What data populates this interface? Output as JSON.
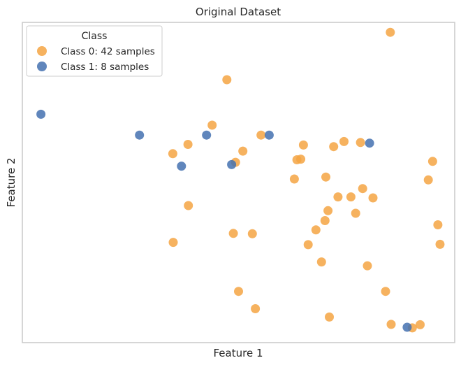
{
  "chart_data": {
    "type": "scatter",
    "title": "Original Dataset",
    "xlabel": "Feature 1",
    "ylabel": "Feature 2",
    "xlim": [
      0,
      100
    ],
    "ylim": [
      0,
      100
    ],
    "grid": false,
    "legend": {
      "title": "Class",
      "placement": "top-left"
    },
    "series": [
      {
        "name": "Class 0: 42 samples",
        "color": "#F5A443",
        "points": [
          [
            85.1,
            96.9
          ],
          [
            47.3,
            82.1
          ],
          [
            43.9,
            67.9
          ],
          [
            55.2,
            64.8
          ],
          [
            38.3,
            61.9
          ],
          [
            74.4,
            62.8
          ],
          [
            78.2,
            62.5
          ],
          [
            51.0,
            59.8
          ],
          [
            65.0,
            61.7
          ],
          [
            72.0,
            61.2
          ],
          [
            34.8,
            59.0
          ],
          [
            49.3,
            56.3
          ],
          [
            63.5,
            57.1
          ],
          [
            64.4,
            57.3
          ],
          [
            94.9,
            56.6
          ],
          [
            62.9,
            51.1
          ],
          [
            70.2,
            51.7
          ],
          [
            93.9,
            50.8
          ],
          [
            78.7,
            48.1
          ],
          [
            73.0,
            45.5
          ],
          [
            76.0,
            45.5
          ],
          [
            81.1,
            45.2
          ],
          [
            38.4,
            42.8
          ],
          [
            70.7,
            41.2
          ],
          [
            77.1,
            40.4
          ],
          [
            70.0,
            38.1
          ],
          [
            96.1,
            36.8
          ],
          [
            67.9,
            35.2
          ],
          [
            48.8,
            34.1
          ],
          [
            53.2,
            34.0
          ],
          [
            34.9,
            31.3
          ],
          [
            66.1,
            30.6
          ],
          [
            96.6,
            30.7
          ],
          [
            69.2,
            25.2
          ],
          [
            79.8,
            24.0
          ],
          [
            50.0,
            16.0
          ],
          [
            84.0,
            16.0
          ],
          [
            53.9,
            10.6
          ],
          [
            71.0,
            8.0
          ],
          [
            85.3,
            5.7
          ],
          [
            90.2,
            4.6
          ],
          [
            92.0,
            5.6
          ]
        ]
      },
      {
        "name": "Class 1: 8 samples",
        "color": "#4471B0",
        "points": [
          [
            4.3,
            71.3
          ],
          [
            27.1,
            64.8
          ],
          [
            42.6,
            64.8
          ],
          [
            57.1,
            64.8
          ],
          [
            80.3,
            62.3
          ],
          [
            36.8,
            55.1
          ],
          [
            48.4,
            55.6
          ],
          [
            89.0,
            4.8
          ]
        ]
      }
    ]
  }
}
